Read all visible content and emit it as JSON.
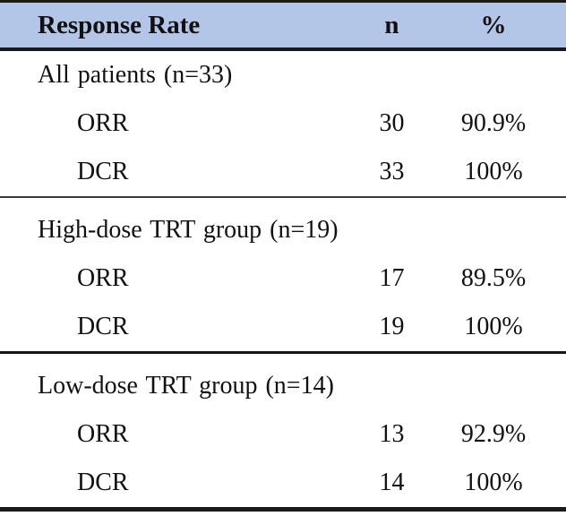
{
  "table": {
    "header": {
      "response_rate": "Response Rate",
      "n": "n",
      "pct": "%"
    },
    "sections": [
      {
        "group": "All patients (n=33)",
        "rows": [
          {
            "label": "ORR",
            "n": "30",
            "pct": "90.9%"
          },
          {
            "label": "DCR",
            "n": "33",
            "pct": "100%"
          }
        ]
      },
      {
        "group": "High-dose TRT group (n=19)",
        "rows": [
          {
            "label": "ORR",
            "n": "17",
            "pct": "89.5%"
          },
          {
            "label": "DCR",
            "n": "19",
            "pct": "100%"
          }
        ]
      },
      {
        "group": "Low-dose TRT group (n=14)",
        "rows": [
          {
            "label": "ORR",
            "n": "13",
            "pct": "92.9%"
          },
          {
            "label": "DCR",
            "n": "14",
            "pct": "100%"
          }
        ]
      }
    ]
  },
  "colors": {
    "header_bg": "#b4c6e7",
    "border_strong": "#1a1a1a"
  }
}
